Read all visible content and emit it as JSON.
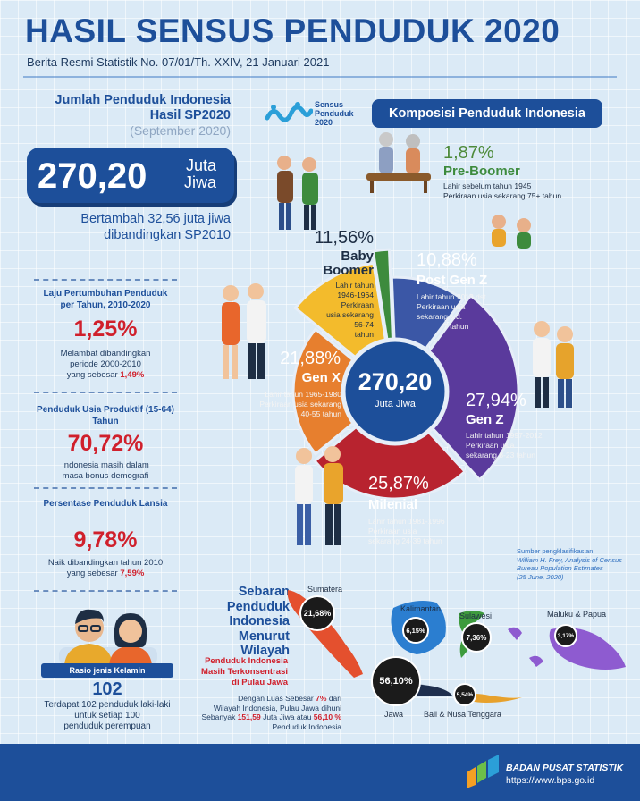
{
  "header": {
    "title": "HASIL SENSUS PENDUDUK 2020",
    "subtitle": "Berita Resmi Statistik No. 07/01/Th. XXIV, 21 Januari 2021"
  },
  "left": {
    "jumlah_label_1": "Jumlah Penduduk Indonesia",
    "jumlah_label_2": "Hasil SP2020",
    "jumlah_period": "(September 2020)",
    "total_value": "270,20",
    "total_unit_1": "Juta",
    "total_unit_2": "Jiwa",
    "growth_1": "Bertambah 32,56 juta jiwa",
    "growth_2": "dibandingkan SP2010",
    "stats": [
      {
        "label": "Laju Pertumbuhan Penduduk per Tahun, 2010-2020",
        "value": "1,25%",
        "desc_1": "Melambat dibandingkan",
        "desc_2": "periode 2000-2010",
        "desc_3": "yang sebesar",
        "desc_hl": "1,49%"
      },
      {
        "label": "Penduduk Usia Produktif (15-64) Tahun",
        "value": "70,72%",
        "desc_1": "Indonesia masih dalam",
        "desc_2": "masa bonus demografi"
      },
      {
        "label": "Persentase Penduduk Lansia",
        "value": "9,78%",
        "desc_1": "Naik dibandingkan tahun 2010",
        "desc_2": "yang sebesar",
        "desc_hl": "7,59%"
      }
    ],
    "rasio": {
      "label": "Rasio jenis Kelamin",
      "value": "102",
      "desc_1": "Terdapat 102 penduduk laki-laki",
      "desc_2": "untuk setiap 100",
      "desc_3": "penduduk perempuan"
    }
  },
  "logo": {
    "text_1": "Sensus",
    "text_2": "Penduduk",
    "text_3": "2020"
  },
  "komposisi_title": "Komposisi Penduduk Indonesia",
  "chart_data": {
    "type": "pie",
    "title": "Komposisi Penduduk Indonesia",
    "center_value": "270,20",
    "center_unit": "Juta Jiwa",
    "slices": [
      {
        "name": "Pre-Boomer",
        "value": 1.87,
        "label": "1,87%",
        "color": "#3d8b3d",
        "desc": [
          "Lahir sebelum tahun 1945",
          "Perkiraan usia sekarang 75+ tahun"
        ]
      },
      {
        "name": "Post Gen Z",
        "value": 10.88,
        "label": "10,88%",
        "color": "#3b57a6",
        "desc": [
          "Lahir tahun 2013 dst",
          "Perkiraan usia",
          "sekarang s.d.",
          "7 tahun"
        ]
      },
      {
        "name": "Gen Z",
        "value": 27.94,
        "label": "27,94%",
        "color": "#5a3a9c",
        "desc": [
          "Lahir tahun 1997-2012",
          "Perkiraan usia",
          "sekarang 8-23 tahun"
        ]
      },
      {
        "name": "Milenial",
        "value": 25.87,
        "label": "25,87%",
        "color": "#b8232f",
        "desc": [
          "Lahir tahun 1981-1996",
          "Perkiraan usia",
          "sekarang 24-39 tahun"
        ]
      },
      {
        "name": "Gen X",
        "value": 21.88,
        "label": "21,88%",
        "color": "#e77f2e",
        "desc": [
          "Lahir tahun 1965-1980",
          "Perkiraan usia sekarang",
          "40-55 tahun"
        ]
      },
      {
        "name": "Baby Boomer",
        "value": 11.56,
        "label": "11,56%",
        "color": "#f3bb2c",
        "desc": [
          "Lahir tahun",
          "1946-1964",
          "Perkiraan",
          "usia sekarang",
          "56-74",
          "tahun"
        ]
      }
    ]
  },
  "source": {
    "line_1": "Sumber pengklasifikasian:",
    "line_2": "William H. Frey, Analysis of Census",
    "line_3": "Bureau Population Estimates",
    "line_4": "(25 June, 2020)"
  },
  "sebaran": {
    "title_1": "Sebaran",
    "title_2": "Penduduk",
    "title_3": "Indonesia",
    "title_4": "Menurut",
    "title_5": "Wilayah",
    "note_1": "Penduduk Indonesia",
    "note_2": "Masih Terkonsentrasi",
    "note_3": "di Pulau Jawa",
    "desc_1a": "Dengan Luas Sebesar",
    "desc_1b": "7%",
    "desc_1c": "dari",
    "desc_2": "Wilayah Indonesia, Pulau Jawa dihuni",
    "desc_3a": "Sebanyak",
    "desc_3b": "151,59",
    "desc_3c": "Juta Jiwa atau",
    "desc_3d": "56,10 %",
    "desc_4": "Penduduk Indonesia",
    "regions": [
      {
        "name": "Sumatera",
        "value": "21,68%"
      },
      {
        "name": "Kalimantan",
        "value": "6,15%"
      },
      {
        "name": "Sulawesi",
        "value": "7,36%"
      },
      {
        "name": "Maluku & Papua",
        "value": "3,17%"
      },
      {
        "name": "Jawa",
        "value": "56,10%"
      },
      {
        "name": "Bali & Nusa Tenggara",
        "value": "5,54%"
      }
    ]
  },
  "footer": {
    "org": "BADAN PUSAT STATISTIK",
    "url": "https://www.bps.go.id"
  }
}
